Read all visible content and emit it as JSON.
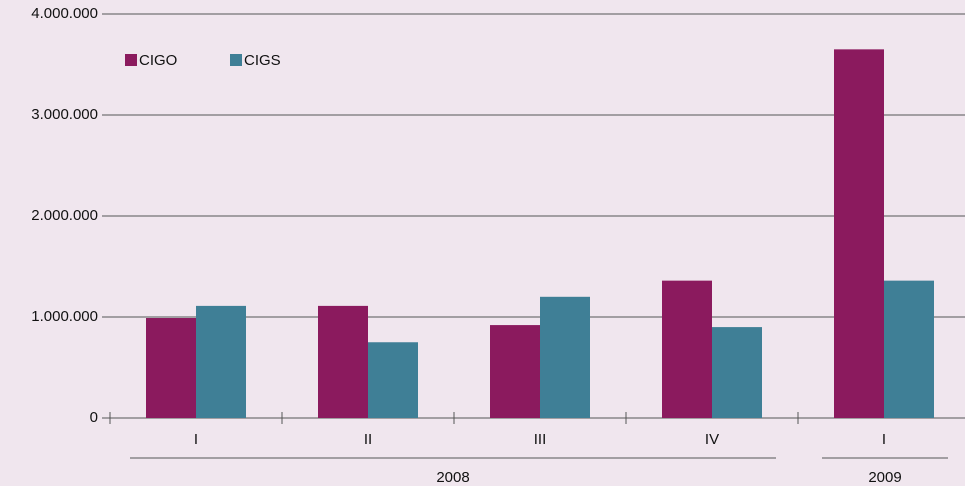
{
  "chart_data": {
    "type": "bar",
    "groups": [
      {
        "label": "2008",
        "categories": [
          "I",
          "II",
          "III",
          "IV"
        ]
      },
      {
        "label": "2009",
        "categories": [
          "I"
        ]
      }
    ],
    "series": [
      {
        "name": "CIGO",
        "color": "#8b1a5e",
        "values": [
          990000,
          1110000,
          920000,
          1360000,
          3650000
        ]
      },
      {
        "name": "CIGS",
        "color": "#3f7f96",
        "values": [
          1110000,
          750000,
          1200000,
          900000,
          1360000
        ]
      }
    ],
    "ylim": [
      0,
      4000000
    ],
    "yticks": [
      {
        "value": 0,
        "label": "0"
      },
      {
        "value": 1000000,
        "label": "1.000.000"
      },
      {
        "value": 2000000,
        "label": "2.000.000"
      },
      {
        "value": 3000000,
        "label": "3.000.000"
      },
      {
        "value": 4000000,
        "label": "4.000.000"
      }
    ],
    "grid": true,
    "legend": "top-left"
  }
}
